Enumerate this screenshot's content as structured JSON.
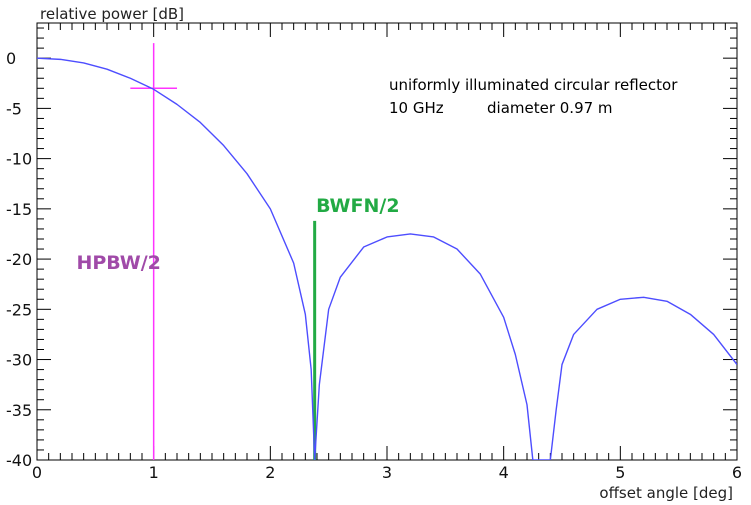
{
  "chart_data": {
    "type": "line",
    "title": "",
    "xlabel": "offset angle [deg]",
    "ylabel": "relative power [dB]",
    "xlim": [
      0,
      6
    ],
    "ylim": [
      -40,
      3.5
    ],
    "grid": false,
    "x_ticks": [
      "0",
      "1",
      "2",
      "3",
      "4",
      "5",
      "6"
    ],
    "y_ticks": [
      "0",
      "-5",
      "-10",
      "-15",
      "-20",
      "-25",
      "-30",
      "-35",
      "-40"
    ],
    "x_tick_values": [
      0,
      1,
      2,
      3,
      4,
      5,
      6
    ],
    "y_tick_values": [
      0,
      -5,
      -10,
      -15,
      -20,
      -25,
      -30,
      -35,
      -40
    ],
    "series": [
      {
        "color": "#4d4dff",
        "x": [
          0,
          0.2,
          0.4,
          0.6,
          0.8,
          1.0,
          1.2,
          1.4,
          1.6,
          1.8,
          2.0,
          2.2,
          2.3,
          2.35,
          2.38,
          2.42,
          2.5,
          2.6,
          2.8,
          3.0,
          3.2,
          3.4,
          3.6,
          3.8,
          4.0,
          4.1,
          4.2,
          4.25,
          4.3,
          4.4,
          4.45,
          4.5,
          4.6,
          4.8,
          5.0,
          5.2,
          5.4,
          5.6,
          5.8,
          6.0
        ],
        "y": [
          0,
          -0.12,
          -0.48,
          -1.1,
          -2.0,
          -3.1,
          -4.6,
          -6.4,
          -8.7,
          -11.5,
          -15.0,
          -20.4,
          -25.5,
          -31.0,
          -40.0,
          -32.5,
          -25.0,
          -21.8,
          -18.8,
          -17.8,
          -17.5,
          -17.8,
          -19.0,
          -21.5,
          -25.8,
          -29.5,
          -34.5,
          -40.0,
          -40.0,
          -40.0,
          -35.0,
          -30.5,
          -27.5,
          -25.0,
          -24.0,
          -23.8,
          -24.2,
          -25.5,
          -27.5,
          -30.5
        ]
      }
    ],
    "markers": [
      {
        "label": "HPBW/2",
        "color": "#ff33ff",
        "label_color": "#a04aa8",
        "x": 1.0,
        "y_from": -40,
        "y_to": 1.5,
        "cross_y": -3.0,
        "cross_x_from": 0.8,
        "cross_x_to": 1.2,
        "label_x": 0.7,
        "label_y": -21.0
      },
      {
        "label": "BWFN/2",
        "color": "#22aa44",
        "label_color": "#22aa44",
        "x": 2.38,
        "y_from": -40,
        "y_to": -16.2,
        "label_x": 2.75,
        "label_y": -15.3
      }
    ],
    "annotations": [
      "uniformly illuminated circular reflector",
      "10 GHz",
      "diameter 0.97 m"
    ]
  }
}
